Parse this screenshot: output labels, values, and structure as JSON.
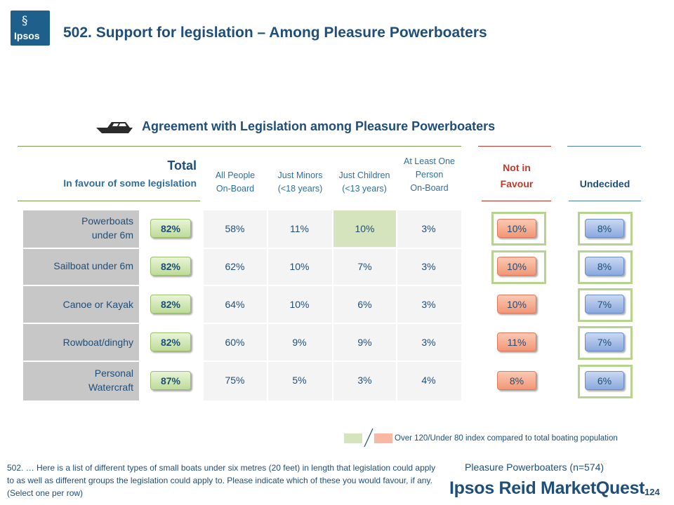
{
  "logo": {
    "mark": "§",
    "text": "Ipsos"
  },
  "title": "502. Support for legislation – Among Pleasure Powerboaters",
  "subtitle": "Agreement with Legislation among Pleasure Powerboaters",
  "total": {
    "label": "Total",
    "sub": "In favour of some legislation"
  },
  "columns": [
    [
      "All People",
      "On-Board"
    ],
    [
      "Just Minors",
      "(<18 years)"
    ],
    [
      "Just Children",
      "(<13 years)"
    ],
    [
      "At Least One",
      "Person",
      "On-Board"
    ]
  ],
  "not_in_favour": [
    "Not in",
    "Favour"
  ],
  "undecided": "Undecided",
  "rows": [
    {
      "label": [
        "Powerboats",
        "under 6m"
      ],
      "total": "82%",
      "cells": [
        "58%",
        "11%",
        "10%",
        "3%"
      ],
      "not_in_favour": "10%",
      "undecided": "8%"
    },
    {
      "label": [
        "Sailboat under 6m"
      ],
      "total": "82%",
      "cells": [
        "62%",
        "10%",
        "7%",
        "3%"
      ],
      "not_in_favour": "10%",
      "undecided": "8%"
    },
    {
      "label": [
        "Canoe or Kayak"
      ],
      "total": "82%",
      "cells": [
        "64%",
        "10%",
        "6%",
        "3%"
      ],
      "not_in_favour": "10%",
      "undecided": "7%"
    },
    {
      "label": [
        "Rowboat/dinghy"
      ],
      "total": "82%",
      "cells": [
        "60%",
        "9%",
        "9%",
        "3%"
      ],
      "not_in_favour": "11%",
      "undecided": "7%"
    },
    {
      "label": [
        "Personal",
        "Watercraft"
      ],
      "total": "87%",
      "cells": [
        "75%",
        "5%",
        "3%",
        "4%"
      ],
      "not_in_favour": "8%",
      "undecided": "6%"
    }
  ],
  "highlight": {
    "color": "#d6e4bd"
  },
  "legend": {
    "text": "Over 120/Under 80 index compared to total boating population",
    "over_color": "#d6e4bd",
    "under_color": "#f7b9a3"
  },
  "footnote": "502. … Here is a list of different types of small boats under six metres (20 feet) in length that legislation could apply to as well as different groups the legislation could apply to. Please indicate which of these you would favour, if any. (Select one per row)",
  "sample": "Pleasure Powerboaters (n=574)",
  "brand": "Ipsos Reid MarketQuest",
  "page_number": "124"
}
